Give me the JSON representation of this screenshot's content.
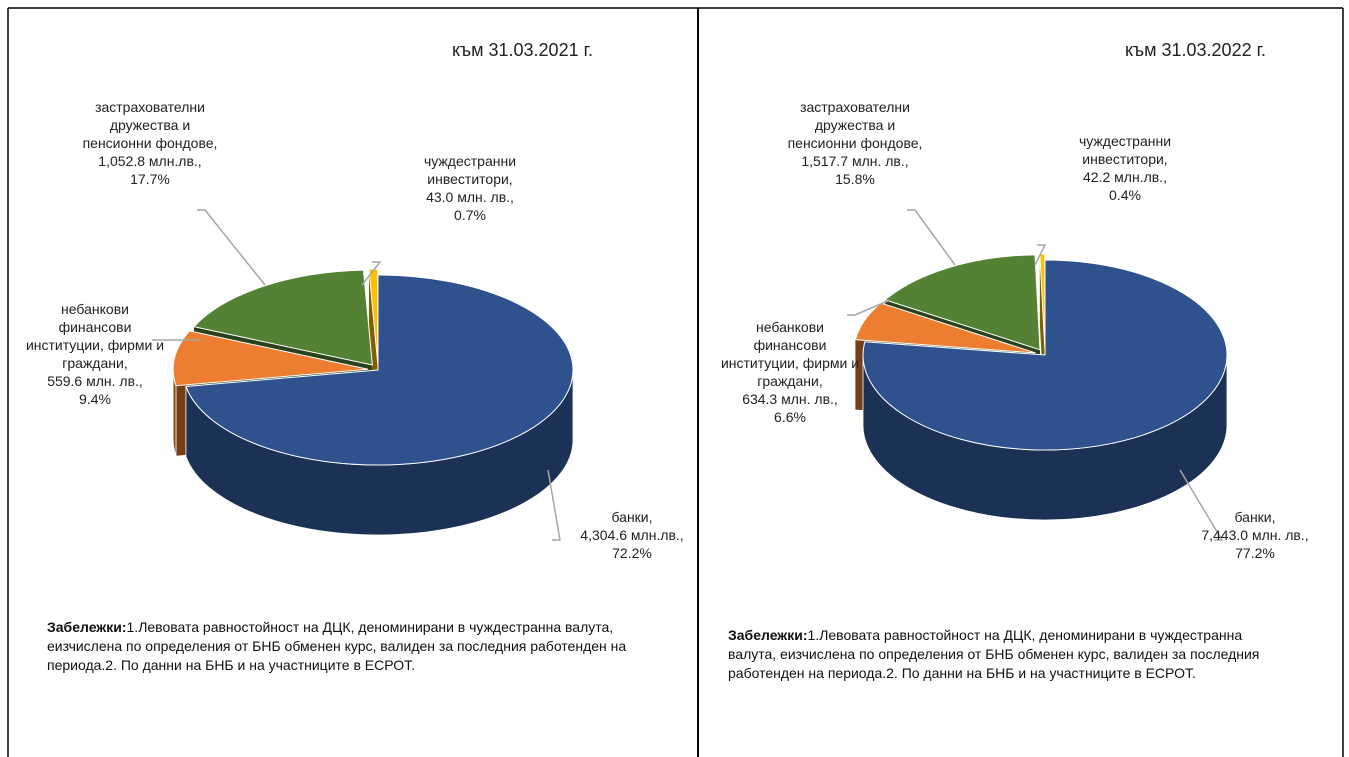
{
  "chart_data": [
    {
      "type": "pie",
      "title": "към 31.03.2021 г.",
      "categories": [
        "банки,",
        "небанкови финансови институции, фирми и граждани,",
        "застрахователни дружества и пенсионни фондове,",
        "чуждестранни инвеститори,"
      ],
      "values": [
        4304.6,
        559.6,
        1052.8,
        43.0
      ],
      "value_labels": [
        "4,304.6 млн.лв.,",
        "559.6 млн. лв.,",
        "1,052.8 млн.лв.,",
        "43.0  млн. лв.,"
      ],
      "percentages": [
        72.2,
        9.4,
        17.7,
        0.7
      ],
      "percentage_labels": [
        "72.2%",
        "9.4%",
        "17.7%",
        "0.7%"
      ],
      "colors": [
        "#2f528f",
        "#ed7d31",
        "#548235",
        "#ffc000"
      ],
      "notes_title": "Забележки:",
      "notes": [
        "1.Левовата равностойност на ДЦК, деноминирани в чуждестранна валута, е",
        "изчислена по определения от БНБ обменен курс, валиден за последния работен",
        "ден на периода.",
        "2. По данни на БНБ и на участниците в ЕСРОТ."
      ]
    },
    {
      "type": "pie",
      "title": "към 31.03.2022 г.",
      "categories": [
        "банки,",
        "небанкови финансови институции, фирми и граждани,",
        "застрахователни дружества и пенсионни фондове,",
        "чуждестранни инвеститори,"
      ],
      "values": [
        7443.0,
        634.3,
        1517.7,
        42.2
      ],
      "value_labels": [
        "7,443.0 млн. лв.,",
        "634.3 млн. лв.,",
        "1,517.7 млн. лв.,",
        "42.2 млн.лв.,"
      ],
      "percentages": [
        77.2,
        6.6,
        15.8,
        0.4
      ],
      "percentage_labels": [
        "77.2%",
        "6.6%",
        "15.8%",
        "0.4%"
      ],
      "colors": [
        "#2f528f",
        "#ed7d31",
        "#548235",
        "#ffc000"
      ],
      "notes_title": "Забележки:",
      "notes": [
        "1.Левовата равностойност на ДЦК, деноминирани в чуждестранна валута, е",
        "изчислена по определения от БНБ обменен курс, валиден за последния работен",
        "ден на периода.",
        "2. По данни на БНБ и на участниците в ЕСРОТ."
      ]
    }
  ]
}
